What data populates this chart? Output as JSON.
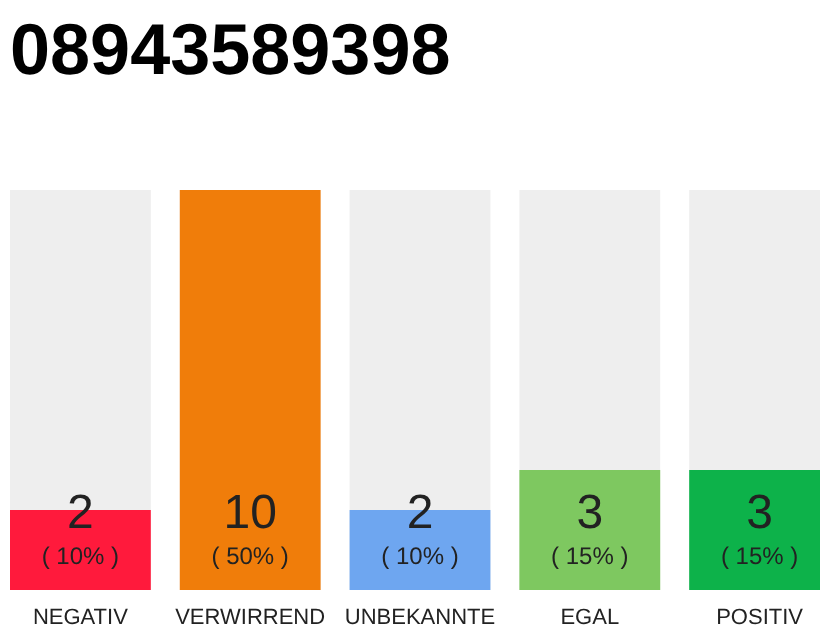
{
  "chart_data": {
    "type": "bar",
    "title": "08943589398",
    "categories": [
      "NEGATIV",
      "VERWIRREND",
      "UNBEKANNTE",
      "EGAL",
      "POSITIV"
    ],
    "values": [
      10,
      50,
      10,
      15,
      15
    ],
    "colors": [
      "#ff1a3c",
      "#f07d0a",
      "#6ea6f0",
      "#7ec860",
      "#0db24a"
    ],
    "value_labels": [
      "( 10% )",
      "( 50% )",
      "( 10% )",
      "( 15% )",
      "( 15% )"
    ],
    "annotations": [
      "2",
      "10",
      "2",
      "3",
      "3"
    ]
  }
}
